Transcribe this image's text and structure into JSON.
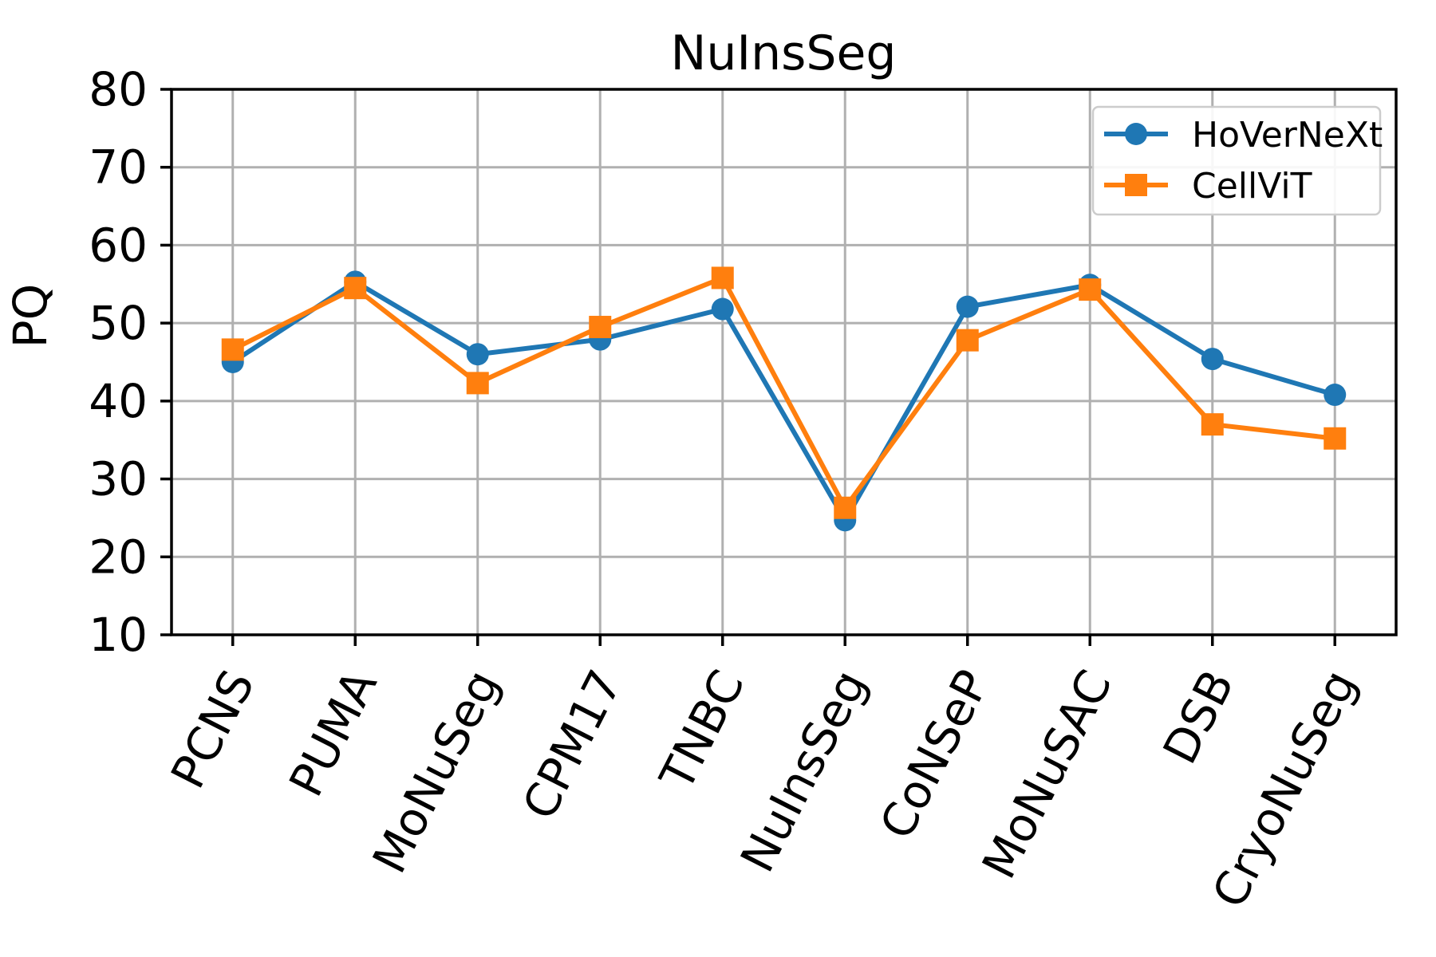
{
  "figure": {
    "background": "#ffffff"
  },
  "chart_data": {
    "type": "line",
    "title": "NuInsSeg",
    "xlabel": "",
    "ylabel": "PQ",
    "ylim": [
      10,
      80
    ],
    "yticks": [
      10,
      20,
      30,
      40,
      50,
      60,
      70,
      80
    ],
    "grid": true,
    "xtick_rotation": 63,
    "legend_position": "upper right",
    "categories": [
      "PCNS",
      "PUMA",
      "MoNuSeg",
      "CPM17",
      "TNBC",
      "NuInsSeg",
      "CoNSeP",
      "MoNuSAC",
      "DSB",
      "CryoNuSeg"
    ],
    "series": [
      {
        "name": "HoVerNeXt",
        "marker": "circle",
        "color": "#1f77b4",
        "values": [
          45.0,
          55.3,
          46.0,
          47.9,
          51.8,
          24.7,
          52.1,
          54.9,
          45.4,
          40.8
        ]
      },
      {
        "name": "CellViT",
        "marker": "square",
        "color": "#ff7f0e",
        "values": [
          46.6,
          54.5,
          42.3,
          49.5,
          55.8,
          26.3,
          47.8,
          54.3,
          37.0,
          35.2
        ]
      }
    ],
    "colors": {
      "grid": "#b0b0b0",
      "axis": "#000000",
      "tick_label": "#000000",
      "legend_border": "#cccccc",
      "legend_background": "#ffffff",
      "background": "#ffffff"
    }
  }
}
